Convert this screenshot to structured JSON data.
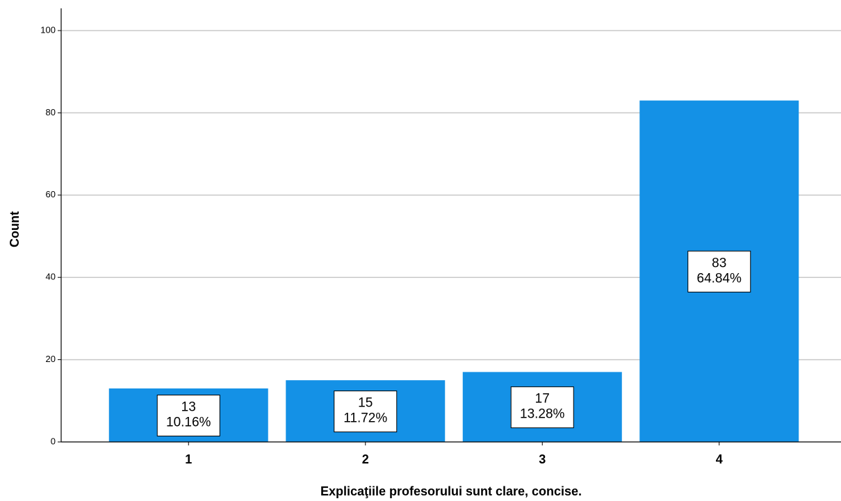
{
  "chart_data": {
    "type": "bar",
    "x_label": "Explicaţiile profesorului sunt clare, concise.",
    "y_label": "Count",
    "categories": [
      "1",
      "2",
      "3",
      "4"
    ],
    "values": [
      13,
      15,
      17,
      83
    ],
    "percent_labels": [
      "10.16%",
      "11.72%",
      "13.28%",
      "64.84%"
    ],
    "color": "#1491e6",
    "ylim": [
      0,
      105
    ],
    "yticks": [
      0,
      20,
      40,
      60,
      80,
      100
    ],
    "grid": true
  }
}
